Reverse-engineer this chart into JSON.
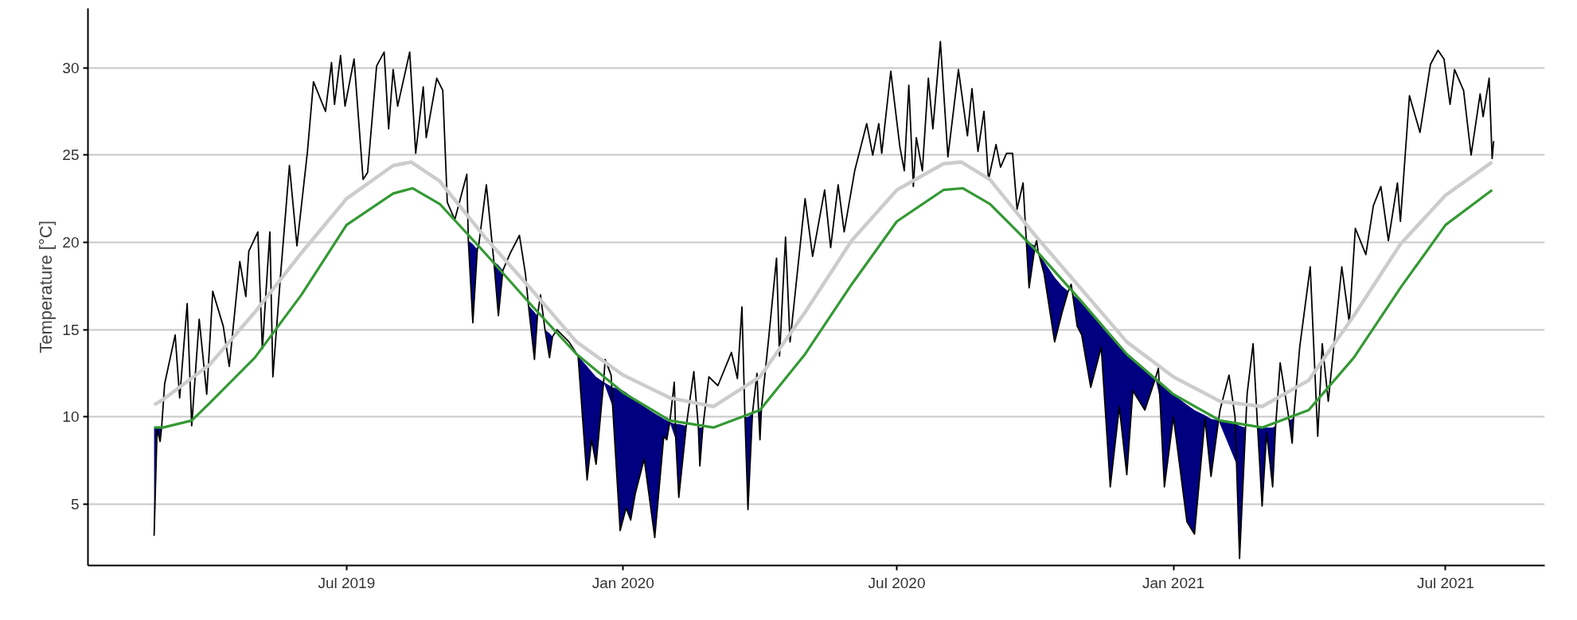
{
  "chart_data": {
    "type": "line",
    "ylabel": "Temperature [°C]",
    "xlim": [
      "2019-01-10",
      "2021-09-05"
    ],
    "ylim": [
      1.5,
      33.4
    ],
    "xticks": [
      {
        "value": "2019-07-01",
        "label": "Jul 2019"
      },
      {
        "value": "2020-01-01",
        "label": "Jan 2020"
      },
      {
        "value": "2020-07-01",
        "label": "Jul 2020"
      },
      {
        "value": "2021-01-01",
        "label": "Jan 2021"
      },
      {
        "value": "2021-07-01",
        "label": "Jul 2021"
      }
    ],
    "yticks": [
      5,
      10,
      15,
      20,
      25,
      30
    ],
    "grid": "y",
    "line_style": "solid",
    "marker": "none",
    "series": [
      {
        "color": "#000000",
        "x": [
          "2019-02-23",
          "2019-02-25",
          "2019-02-27",
          "2019-02-28",
          "2019-03-02",
          "2019-03-09",
          "2019-03-12",
          "2019-03-17",
          "2019-03-20",
          "2019-03-25",
          "2019-03-30",
          "2019-04-03",
          "2019-04-10",
          "2019-04-14",
          "2019-04-21",
          "2019-04-25",
          "2019-04-27",
          "2019-05-03",
          "2019-05-06",
          "2019-05-11",
          "2019-05-13",
          "2019-05-18",
          "2019-05-24",
          "2019-05-29",
          "2019-06-05",
          "2019-06-09",
          "2019-06-17",
          "2019-06-21",
          "2019-06-23",
          "2019-06-27",
          "2019-06-30",
          "2019-07-06",
          "2019-07-12",
          "2019-07-15",
          "2019-07-21",
          "2019-07-26",
          "2019-07-29",
          "2019-08-01",
          "2019-08-04",
          "2019-08-12",
          "2019-08-16",
          "2019-08-21",
          "2019-08-23",
          "2019-08-30",
          "2019-09-03",
          "2019-09-06",
          "2019-09-11",
          "2019-09-19",
          "2019-09-20",
          "2019-09-23",
          "2019-09-26",
          "2019-09-27",
          "2019-10-02",
          "2019-10-07",
          "2019-10-10",
          "2019-10-13",
          "2019-10-18",
          "2019-10-24",
          "2019-10-28",
          "2019-10-30",
          "2019-11-03",
          "2019-11-05",
          "2019-11-07",
          "2019-11-10",
          "2019-11-13",
          "2019-11-15",
          "2019-11-18",
          "2019-11-26",
          "2019-12-02",
          "2019-12-08",
          "2019-12-11",
          "2019-12-14",
          "2019-12-19",
          "2019-12-20",
          "2019-12-24",
          "2019-12-25",
          "2019-12-30",
          "2020-01-03",
          "2020-01-06",
          "2020-01-09",
          "2020-01-15",
          "2020-01-22",
          "2020-01-28",
          "2020-01-30",
          "2020-02-01",
          "2020-02-04",
          "2020-02-05",
          "2020-02-07",
          "2020-02-12",
          "2020-02-17",
          "2020-02-20",
          "2020-02-21",
          "2020-02-23",
          "2020-02-27",
          "2020-03-04",
          "2020-03-13",
          "2020-03-17",
          "2020-03-20",
          "2020-03-22",
          "2020-03-24",
          "2020-03-27",
          "2020-03-30",
          "2020-03-31",
          "2020-04-01",
          "2020-04-02",
          "2020-04-07",
          "2020-04-12",
          "2020-04-14",
          "2020-04-18",
          "2020-04-21",
          "2020-05-01",
          "2020-05-06",
          "2020-05-14",
          "2020-05-18",
          "2020-05-23",
          "2020-05-27",
          "2020-06-03",
          "2020-06-11",
          "2020-06-15",
          "2020-06-19",
          "2020-06-21",
          "2020-06-27",
          "2020-07-03",
          "2020-07-06",
          "2020-07-09",
          "2020-07-12",
          "2020-07-14",
          "2020-07-18",
          "2020-07-22",
          "2020-07-25",
          "2020-07-30",
          "2020-08-04",
          "2020-08-11",
          "2020-08-17",
          "2020-08-20",
          "2020-08-24",
          "2020-08-28",
          "2020-08-31",
          "2020-09-05",
          "2020-09-08",
          "2020-09-12",
          "2020-09-16",
          "2020-09-19",
          "2020-09-23",
          "2020-09-25",
          "2020-09-27",
          "2020-10-01",
          "2020-10-02",
          "2020-10-03",
          "2020-10-07",
          "2020-10-14",
          "2020-10-19",
          "2020-10-23",
          "2020-10-25",
          "2020-10-26",
          "2020-10-29",
          "2020-11-01",
          "2020-11-07",
          "2020-11-14",
          "2020-11-20",
          "2020-11-26",
          "2020-12-01",
          "2020-12-05",
          "2020-12-13",
          "2020-12-20",
          "2020-12-22",
          "2020-12-23",
          "2020-12-26",
          "2021-01-01",
          "2021-01-10",
          "2021-01-15",
          "2021-01-22",
          "2021-01-26",
          "2021-01-31",
          "2021-02-01",
          "2021-02-07",
          "2021-02-11",
          "2021-02-12",
          "2021-02-14",
          "2021-02-18",
          "2021-02-19",
          "2021-02-23",
          "2021-02-26",
          "2021-03-01",
          "2021-03-04",
          "2021-03-08",
          "2021-03-10",
          "2021-03-13",
          "2021-03-19",
          "2021-03-21",
          "2021-03-22",
          "2021-03-26",
          "2021-04-02",
          "2021-04-07",
          "2021-04-10",
          "2021-04-14",
          "2021-04-23",
          "2021-04-28",
          "2021-05-02",
          "2021-05-09",
          "2021-05-14",
          "2021-05-19",
          "2021-05-24",
          "2021-05-30",
          "2021-06-01",
          "2021-06-07",
          "2021-06-14",
          "2021-06-21",
          "2021-06-26",
          "2021-06-30",
          "2021-07-04",
          "2021-07-07",
          "2021-07-13",
          "2021-07-18",
          "2021-07-24",
          "2021-07-26",
          "2021-07-30",
          "2021-08-01",
          "2021-08-02"
        ],
        "values": [
          3.2,
          9.3,
          8.6,
          9.4,
          11.9,
          14.7,
          11.1,
          16.5,
          9.5,
          15.6,
          11.3,
          17.2,
          15.2,
          12.9,
          18.9,
          16.9,
          19.5,
          20.6,
          13.9,
          20.6,
          12.3,
          18.0,
          24.4,
          19.8,
          25.2,
          29.2,
          27.5,
          30.3,
          27.9,
          30.7,
          27.8,
          30.5,
          23.6,
          24.0,
          30.1,
          30.9,
          26.5,
          29.9,
          27.8,
          30.9,
          25.1,
          28.9,
          26.0,
          29.4,
          28.7,
          22.3,
          21.3,
          23.9,
          20.1,
          15.4,
          19.6,
          19.9,
          23.3,
          18.9,
          15.8,
          18.4,
          19.4,
          20.4,
          18.2,
          16.4,
          13.3,
          15.8,
          17.0,
          15.0,
          13.4,
          14.6,
          15.0,
          14.3,
          13.5,
          6.4,
          8.7,
          7.3,
          12.0,
          13.3,
          12.4,
          10.6,
          3.5,
          4.8,
          4.1,
          5.6,
          7.6,
          3.1,
          8.9,
          8.7,
          9.7,
          12.0,
          8.7,
          5.4,
          9.5,
          12.6,
          9.4,
          7.2,
          9.4,
          12.3,
          11.8,
          13.7,
          12.2,
          16.3,
          10.0,
          4.7,
          10.2,
          12.5,
          10.4,
          8.7,
          10.5,
          14.7,
          19.1,
          13.5,
          20.3,
          14.3,
          22.5,
          19.2,
          23.0,
          19.7,
          23.3,
          20.6,
          24.1,
          26.8,
          25.0,
          26.8,
          25.1,
          29.8,
          25.5,
          24.1,
          29.0,
          23.2,
          26.0,
          24.1,
          29.4,
          26.5,
          31.5,
          24.9,
          29.9,
          26.1,
          28.8,
          25.2,
          27.5,
          23.6,
          25.6,
          24.3,
          25.1,
          25.1,
          21.9,
          23.4,
          20.3,
          17.4,
          19.8,
          20.1,
          19.5,
          18.2,
          14.3,
          16.0,
          17.2,
          17.6,
          17.0,
          15.2,
          14.7,
          11.7,
          14.0,
          6.0,
          10.6,
          6.7,
          11.5,
          10.4,
          12.2,
          12.8,
          11.1,
          6.0,
          10.0,
          4.0,
          3.3,
          9.9,
          6.6,
          9.8,
          10.4,
          12.4,
          10.0,
          7.3,
          1.9,
          9.4,
          11.3,
          14.2,
          9.4,
          4.9,
          9.1,
          6.0,
          9.5,
          13.1,
          9.8,
          8.5,
          10.0,
          14.0,
          18.6,
          8.9,
          14.2,
          10.9,
          18.6,
          15.4,
          20.8,
          19.3,
          22.1,
          23.2,
          20.1,
          23.4,
          21.2,
          28.4,
          26.3,
          30.2,
          31.0,
          30.5,
          27.9,
          29.9,
          28.7,
          25.0,
          28.5,
          27.2,
          29.4,
          24.8,
          25.8
        ],
        "lower": [
          3.2,
          9.3,
          8.6,
          9.4,
          null,
          null,
          null,
          null,
          null,
          null,
          null,
          null,
          null,
          null,
          null,
          null,
          null,
          null,
          null,
          null,
          null,
          null,
          null,
          null,
          null,
          null,
          null,
          null,
          null,
          null,
          null,
          null,
          null,
          null,
          null,
          null,
          null,
          null,
          null,
          null,
          null,
          null,
          null,
          null,
          null,
          null,
          null,
          null,
          20.1,
          15.4,
          19.6,
          null,
          null,
          18.9,
          15.8,
          18.4,
          null,
          null,
          null,
          16.4,
          13.3,
          15.8,
          null,
          15.0,
          13.4,
          14.6,
          null,
          null,
          13.5,
          6.4,
          8.7,
          7.3,
          12.0,
          null,
          null,
          10.6,
          3.5,
          4.8,
          4.1,
          5.6,
          7.6,
          3.1,
          8.9,
          8.7,
          9.7,
          null,
          8.7,
          5.4,
          9.5,
          null,
          9.4,
          7.2,
          9.4,
          null,
          null,
          null,
          null,
          null,
          10.0,
          4.7,
          10.2,
          null,
          10.4,
          8.7,
          10.5,
          null,
          null,
          null,
          null,
          null,
          null,
          null,
          null,
          null,
          null,
          null,
          null,
          null,
          null,
          null,
          null,
          null,
          null,
          null,
          null,
          null,
          null,
          null,
          null,
          null,
          null,
          null,
          null,
          null,
          null,
          null,
          null,
          null,
          null,
          null,
          null,
          null,
          null,
          null,
          20.3,
          17.4,
          19.8,
          null,
          19.5,
          18.2,
          14.3,
          16.0,
          17.2,
          null,
          17.0,
          15.2,
          14.7,
          11.7,
          14.0,
          6.0,
          10.6,
          6.7,
          11.5,
          10.4,
          12.2,
          null,
          11.1,
          6.0,
          10.0,
          4.0,
          3.3,
          9.9,
          6.6,
          9.8,
          null,
          null,
          null,
          7.3,
          1.9,
          9.4,
          null,
          null,
          9.4,
          4.9,
          9.1,
          6.0,
          9.5,
          null,
          9.8,
          8.5,
          10.0,
          null,
          null,
          null,
          null,
          null,
          null,
          null,
          null,
          null,
          null,
          null,
          null,
          null,
          null,
          null,
          null,
          null,
          null,
          null,
          null,
          null,
          null,
          null,
          null,
          null,
          null,
          null,
          null
        ],
        "upper": [
          9.4,
          9.4,
          9.4,
          9.4,
          null,
          null,
          null,
          null,
          null,
          null,
          null,
          null,
          null,
          null,
          null,
          null,
          null,
          null,
          null,
          null,
          null,
          null,
          null,
          null,
          null,
          null,
          null,
          null,
          null,
          null,
          null,
          null,
          null,
          null,
          null,
          null,
          null,
          null,
          null,
          null,
          null,
          null,
          null,
          null,
          null,
          null,
          null,
          null,
          20.1,
          19.9,
          19.6,
          null,
          null,
          18.9,
          18.7,
          18.4,
          null,
          null,
          null,
          16.4,
          16.0,
          15.8,
          null,
          15.0,
          14.8,
          14.6,
          null,
          null,
          13.5,
          12.9,
          12.6,
          12.3,
          12.0,
          null,
          null,
          11.7,
          11.6,
          11.4,
          11.2,
          11.0,
          10.6,
          10.2,
          9.9,
          9.8,
          9.7,
          null,
          9.6,
          9.6,
          9.5,
          null,
          9.4,
          9.4,
          9.4,
          null,
          null,
          null,
          null,
          null,
          10.0,
          10.0,
          10.2,
          null,
          10.4,
          10.4,
          10.5,
          null,
          null,
          null,
          null,
          null,
          null,
          null,
          null,
          null,
          null,
          null,
          null,
          null,
          null,
          null,
          null,
          null,
          null,
          null,
          null,
          null,
          null,
          null,
          null,
          null,
          null,
          null,
          null,
          null,
          null,
          null,
          null,
          null,
          null,
          null,
          null,
          null,
          null,
          null,
          20.3,
          20.0,
          19.8,
          null,
          19.5,
          18.9,
          18.0,
          17.5,
          17.2,
          null,
          17.0,
          16.8,
          16.6,
          16.0,
          15.2,
          14.6,
          14.1,
          13.6,
          13.3,
          12.7,
          12.2,
          null,
          11.9,
          11.7,
          11.3,
          10.7,
          10.4,
          10.1,
          9.9,
          9.8,
          null,
          null,
          null,
          9.6,
          9.5,
          9.4,
          null,
          null,
          9.4,
          9.4,
          9.4,
          9.4,
          9.5,
          null,
          9.8,
          9.9,
          10.0,
          null,
          null,
          null,
          null,
          null,
          null,
          null,
          null,
          null,
          null,
          null,
          null,
          null,
          null,
          null,
          null,
          null,
          null,
          null,
          null,
          null,
          null,
          null,
          null,
          null,
          null,
          null,
          null
        ]
      },
      {
        "color": "#cccccc",
        "x": [
          "2019-02-23",
          "2019-03-01",
          "2019-04-01",
          "2019-05-01",
          "2019-06-01",
          "2019-07-01",
          "2019-08-01",
          "2019-08-13",
          "2019-09-01",
          "2019-10-01",
          "2019-11-01",
          "2019-12-01",
          "2020-01-01",
          "2020-02-01",
          "2020-03-01",
          "2020-04-01",
          "2020-05-01",
          "2020-06-01",
          "2020-07-01",
          "2020-08-01",
          "2020-08-13",
          "2020-09-01",
          "2020-10-01",
          "2020-11-01",
          "2020-12-01",
          "2021-01-01",
          "2021-02-01",
          "2021-03-01",
          "2021-04-01",
          "2021-05-01",
          "2021-06-01",
          "2021-07-01",
          "2021-08-01"
        ],
        "values": [
          10.7,
          11.0,
          13.0,
          16.0,
          19.4,
          22.5,
          24.4,
          24.6,
          23.5,
          20.3,
          17.3,
          14.3,
          12.4,
          11.1,
          10.6,
          12.3,
          16.0,
          20.1,
          23.0,
          24.5,
          24.6,
          23.6,
          20.4,
          17.3,
          14.3,
          12.3,
          10.9,
          10.6,
          12.1,
          15.8,
          19.9,
          22.7,
          24.6
        ]
      },
      {
        "color": "#339933",
        "x": [
          "2019-02-23",
          "2019-03-01",
          "2019-03-20",
          "2019-04-01",
          "2019-05-01",
          "2019-06-01",
          "2019-07-01",
          "2019-08-01",
          "2019-08-14",
          "2019-09-01",
          "2019-10-01",
          "2019-11-01",
          "2019-12-01",
          "2020-01-01",
          "2020-02-01",
          "2020-03-01",
          "2020-04-01",
          "2020-05-01",
          "2020-06-01",
          "2020-07-01",
          "2020-08-01",
          "2020-08-14",
          "2020-09-01",
          "2020-10-01",
          "2020-11-01",
          "2020-12-01",
          "2021-01-01",
          "2021-02-01",
          "2021-03-01",
          "2021-04-01",
          "2021-05-01",
          "2021-06-01",
          "2021-07-01",
          "2021-08-01"
        ],
        "values": [
          9.4,
          9.4,
          9.8,
          10.8,
          13.4,
          17.0,
          21.0,
          22.8,
          23.1,
          22.2,
          19.4,
          16.4,
          13.6,
          11.4,
          9.8,
          9.4,
          10.4,
          13.6,
          17.6,
          21.2,
          23.0,
          23.1,
          22.2,
          19.6,
          16.6,
          13.6,
          11.3,
          9.8,
          9.4,
          10.4,
          13.4,
          17.4,
          21.0,
          23.0
        ]
      }
    ]
  }
}
